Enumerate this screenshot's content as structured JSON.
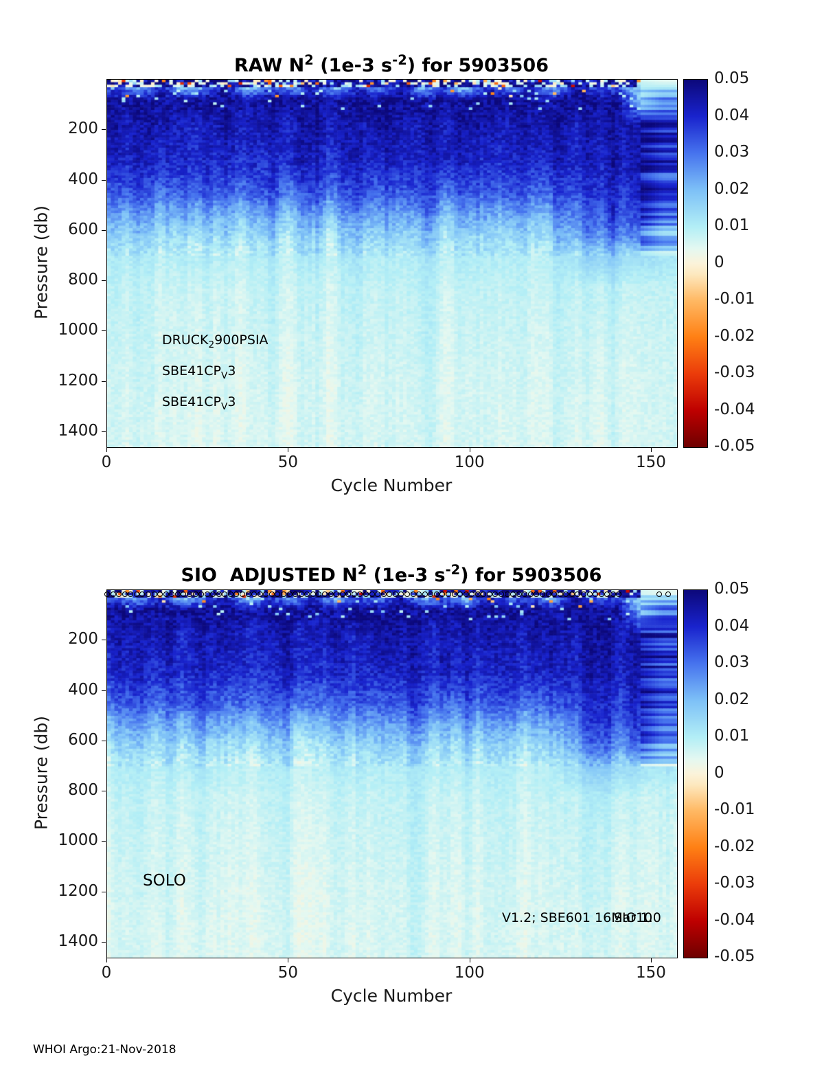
{
  "page": {
    "footer": "WHOI Argo:21-Nov-2018",
    "background": "#ffffff",
    "text_color": "#1a1a1a"
  },
  "colormap": {
    "clim": [
      -0.05,
      0.05
    ],
    "stops": [
      [
        -0.05,
        "#6e0000"
      ],
      [
        -0.04,
        "#be0000"
      ],
      [
        -0.03,
        "#eb3c0a"
      ],
      [
        -0.02,
        "#ff8014"
      ],
      [
        -0.01,
        "#ffb964"
      ],
      [
        -0.003,
        "#fde8be"
      ],
      [
        0.0,
        "#fbf3da"
      ],
      [
        0.004,
        "#e4f8f1"
      ],
      [
        0.01,
        "#b2eef6"
      ],
      [
        0.02,
        "#7dc0f7"
      ],
      [
        0.03,
        "#4673ee"
      ],
      [
        0.04,
        "#1923cd"
      ],
      [
        0.05,
        "#0c087a"
      ]
    ]
  },
  "chart_data": [
    {
      "type": "heatmap",
      "title": {
        "pre": "RAW N",
        "sup1": "2",
        "mid": " (1e-3 s",
        "sup2": "-2",
        "post": ") for 5903506"
      },
      "title_plain": "RAW N^2 (1e-3 s^-2) for 5903506",
      "xlabel": "Cycle Number",
      "ylabel": "Pressure (db)",
      "x_range": [
        0,
        157
      ],
      "y_range_db": [
        0,
        1460
      ],
      "x_ticks": [
        0,
        50,
        100,
        150
      ],
      "y_ticks": [
        200,
        400,
        600,
        800,
        1000,
        1200,
        1400
      ],
      "colorbar_ticks": [
        0.05,
        0.04,
        0.03,
        0.02,
        0.01,
        0,
        -0.01,
        -0.02,
        -0.03,
        -0.04,
        -0.05
      ],
      "annotations": {
        "sensor_lines": [
          {
            "pre": "DRUCK",
            "sub": "2",
            "post": "900PSIA"
          },
          {
            "pre": "SBE41CP",
            "sub": "V",
            "post": "3"
          },
          {
            "pre": "SBE41CP",
            "sub": "V",
            "post": "3"
          }
        ]
      },
      "grid": {
        "cycle_centers": [
          3,
          9,
          15,
          21,
          27,
          33,
          39,
          45,
          51,
          57,
          63,
          69,
          75,
          81,
          87,
          93,
          99,
          105,
          111,
          117,
          123,
          129,
          135,
          141,
          147,
          153
        ],
        "pressure_centers": [
          15,
          80,
          185,
          325,
          450,
          540,
          620,
          705,
          825,
          1000,
          1200,
          1390
        ],
        "values": [
          [
            0.03,
            0.012,
            0.042,
            0.005,
            0.025,
            0.045,
            0.002,
            0.032,
            0.015,
            0.04,
            0.008,
            0.035,
            0.02,
            0.045,
            0.01,
            0.03,
            0.003,
            0.04,
            0.022,
            0.036,
            0.012,
            0.045,
            0.026,
            0.031,
            0.012,
            0.01
          ],
          [
            0.046,
            0.047,
            0.045,
            0.048,
            0.047,
            0.048,
            0.044,
            0.047,
            0.048,
            0.046,
            0.045,
            0.048,
            0.047,
            0.048,
            0.046,
            0.045,
            0.048,
            0.047,
            0.048,
            0.046,
            0.045,
            0.048,
            0.047,
            0.046,
            0.02,
            0.03
          ],
          [
            0.044,
            0.043,
            0.045,
            0.042,
            0.044,
            0.045,
            0.043,
            0.044,
            0.042,
            0.045,
            0.044,
            0.043,
            0.045,
            0.044,
            0.042,
            0.043,
            0.045,
            0.044,
            0.043,
            0.044,
            0.045,
            0.043,
            0.046,
            0.044,
            0.046,
            0.04
          ],
          [
            0.04,
            0.042,
            0.039,
            0.041,
            0.042,
            0.04,
            0.041,
            0.039,
            0.042,
            0.041,
            0.04,
            0.042,
            0.039,
            0.041,
            0.04,
            0.042,
            0.041,
            0.039,
            0.042,
            0.04,
            0.041,
            0.042,
            0.044,
            0.043,
            0.045,
            0.038
          ],
          [
            0.032,
            0.035,
            0.03,
            0.034,
            0.036,
            0.031,
            0.033,
            0.035,
            0.03,
            0.034,
            0.032,
            0.036,
            0.031,
            0.033,
            0.035,
            0.03,
            0.034,
            0.032,
            0.035,
            0.031,
            0.033,
            0.036,
            0.04,
            0.038,
            0.042,
            0.034
          ],
          [
            0.022,
            0.025,
            0.02,
            0.024,
            0.026,
            0.021,
            0.023,
            0.025,
            0.02,
            0.024,
            0.022,
            0.026,
            0.021,
            0.023,
            0.025,
            0.02,
            0.024,
            0.022,
            0.025,
            0.021,
            0.023,
            0.03,
            0.036,
            0.034,
            0.038,
            0.028
          ],
          [
            0.015,
            0.017,
            0.014,
            0.016,
            0.018,
            0.014,
            0.016,
            0.017,
            0.013,
            0.016,
            0.015,
            0.018,
            0.014,
            0.016,
            0.017,
            0.013,
            0.016,
            0.015,
            0.017,
            0.014,
            0.016,
            0.024,
            0.03,
            0.028,
            0.032,
            0.022
          ],
          [
            0.01,
            0.011,
            0.009,
            0.011,
            0.012,
            0.009,
            0.01,
            0.011,
            0.009,
            0.011,
            0.01,
            0.012,
            0.009,
            0.01,
            0.011,
            0.009,
            0.011,
            0.01,
            0.011,
            0.009,
            0.01,
            0.014,
            0.018,
            0.016,
            0.014,
            0.012
          ],
          [
            0.008,
            0.009,
            0.007,
            0.008,
            0.009,
            0.007,
            0.008,
            0.009,
            0.007,
            0.008,
            0.008,
            0.009,
            0.007,
            0.008,
            0.009,
            0.007,
            0.008,
            0.008,
            0.009,
            0.007,
            0.008,
            0.009,
            0.01,
            0.009,
            0.008,
            0.008
          ],
          [
            0.007,
            0.008,
            0.006,
            0.007,
            0.008,
            0.006,
            0.007,
            0.008,
            0.006,
            0.007,
            0.007,
            0.008,
            0.006,
            0.007,
            0.008,
            0.006,
            0.007,
            0.007,
            0.008,
            0.006,
            0.007,
            0.008,
            0.008,
            0.007,
            0.007,
            0.007
          ],
          [
            0.006,
            0.007,
            0.006,
            0.006,
            0.007,
            0.005,
            0.006,
            0.007,
            0.005,
            0.006,
            0.006,
            0.007,
            0.005,
            0.006,
            0.007,
            0.005,
            0.006,
            0.006,
            0.007,
            0.005,
            0.006,
            0.007,
            0.007,
            0.006,
            0.006,
            0.006
          ],
          [
            0.006,
            0.006,
            0.005,
            0.006,
            0.006,
            0.005,
            0.006,
            0.006,
            0.005,
            0.006,
            0.006,
            0.006,
            0.005,
            0.006,
            0.006,
            0.005,
            0.006,
            0.006,
            0.006,
            0.005,
            0.006,
            0.006,
            0.006,
            0.006,
            0.006,
            0.006
          ]
        ]
      }
    },
    {
      "type": "heatmap",
      "title": {
        "pre": "SIO  ADJUSTED N",
        "sup1": "2",
        "mid": " (1e-3 s",
        "sup2": "-2",
        "post": ") for 5903506"
      },
      "title_plain": "SIO ADJUSTED N^2 (1e-3 s^-2) for 5903506",
      "xlabel": "Cycle Number",
      "ylabel": "Pressure (db)",
      "x_range": [
        0,
        157
      ],
      "y_range_db": [
        0,
        1460
      ],
      "x_ticks": [
        0,
        50,
        100,
        150
      ],
      "y_ticks": [
        200,
        400,
        600,
        800,
        1000,
        1200,
        1400
      ],
      "colorbar_ticks": [
        0.05,
        0.04,
        0.03,
        0.02,
        0.01,
        0,
        -0.01,
        -0.02,
        -0.03,
        -0.04,
        -0.05
      ],
      "annotations": {
        "platform": "SOLO",
        "version_right": "V1.2; SBE601 16Mar10",
        "version_overlay": "SIO 1.0"
      },
      "markers": {
        "symbol": "o",
        "pressure_db": 15,
        "cycle_span": [
          0,
          141
        ],
        "count": 88,
        "extra_cycles": [
          152,
          154.5
        ]
      },
      "grid": "same-as-raw"
    }
  ]
}
